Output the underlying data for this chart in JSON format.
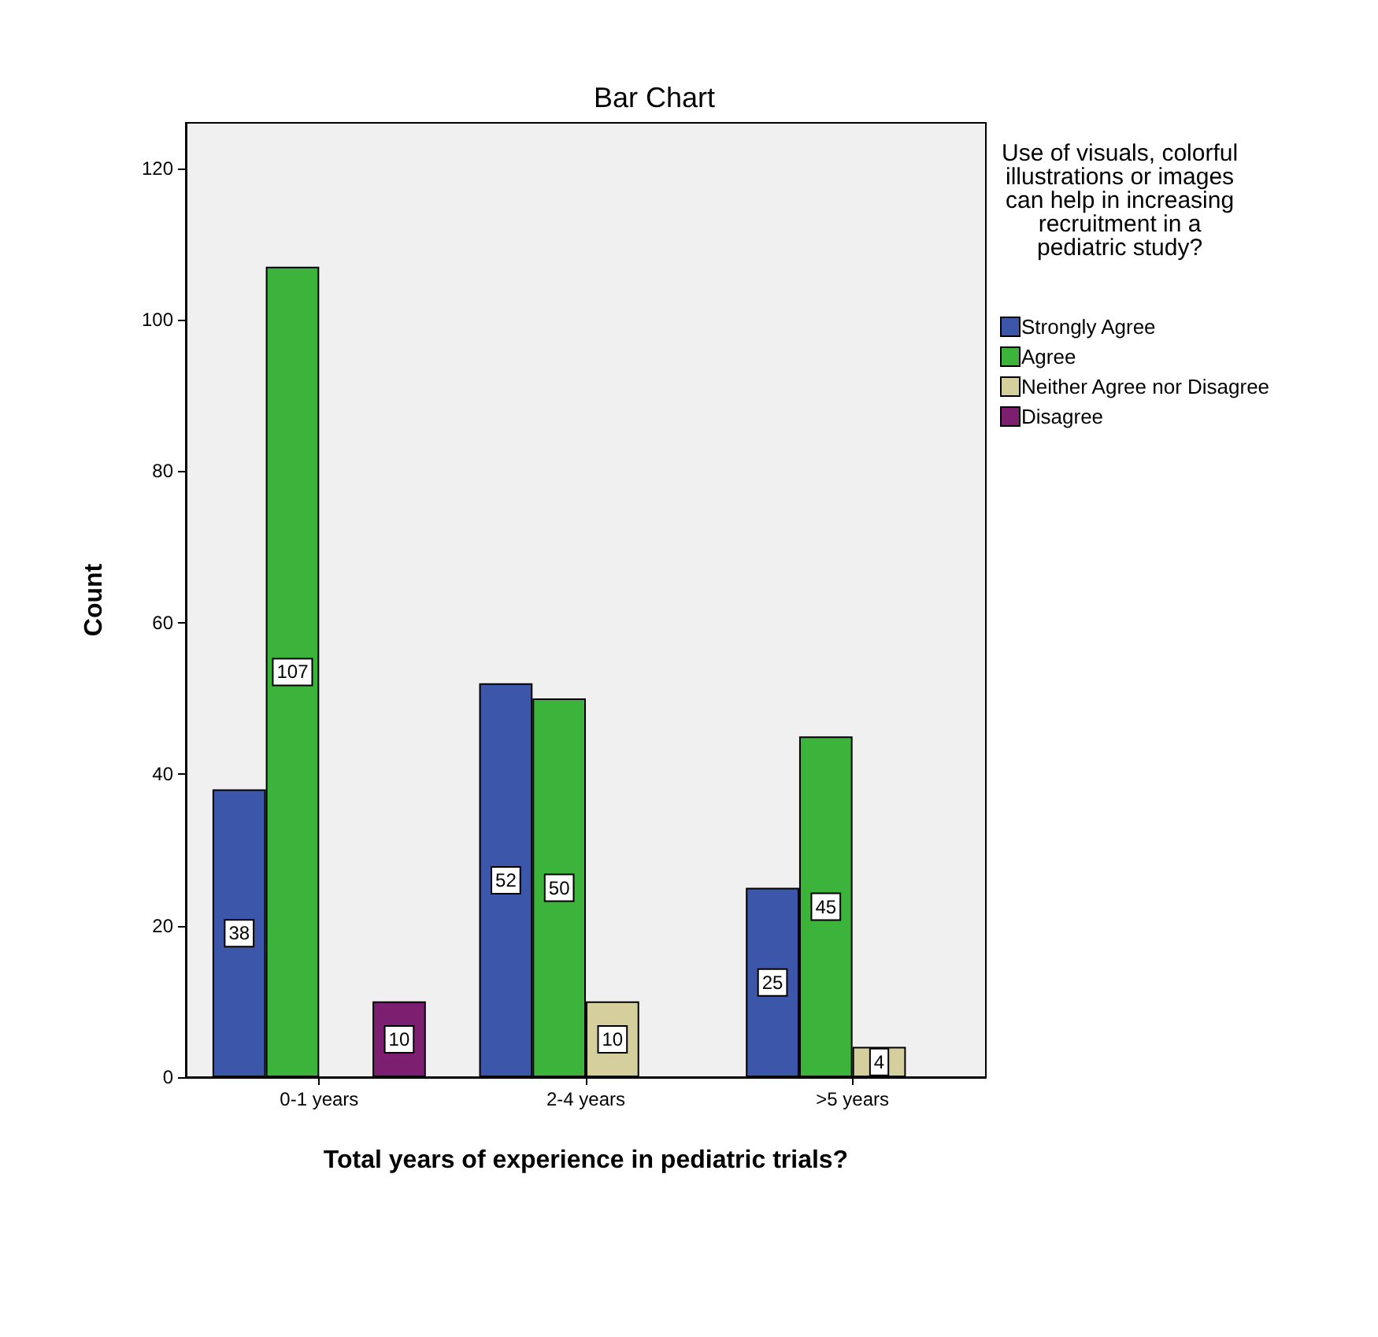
{
  "chart_data": {
    "type": "bar",
    "title": "Bar Chart",
    "xlabel": "Total years of experience in pediatric trials?",
    "ylabel": "Count",
    "legend_title": "Use of visuals, colorful\nillustrations or images\ncan help in increasing\nrecruitment in a\npediatric study?",
    "categories": [
      "0-1 years",
      "2-4 years",
      ">5 years"
    ],
    "series": [
      {
        "name": "Strongly Agree",
        "color": "#3c56aa",
        "values": [
          38,
          52,
          25
        ]
      },
      {
        "name": "Agree",
        "color": "#3cb43c",
        "values": [
          107,
          50,
          45
        ]
      },
      {
        "name": "Neither Agree nor Disagree",
        "color": "#d4cf9c",
        "values": [
          null,
          10,
          4
        ]
      },
      {
        "name": "Disagree",
        "color": "#7c1f70",
        "values": [
          10,
          null,
          null
        ]
      }
    ],
    "ylim": [
      0,
      126
    ],
    "yticks": [
      0,
      20,
      40,
      60,
      80,
      100,
      120
    ],
    "grid": false,
    "legend": "top right",
    "data_labels": true
  }
}
